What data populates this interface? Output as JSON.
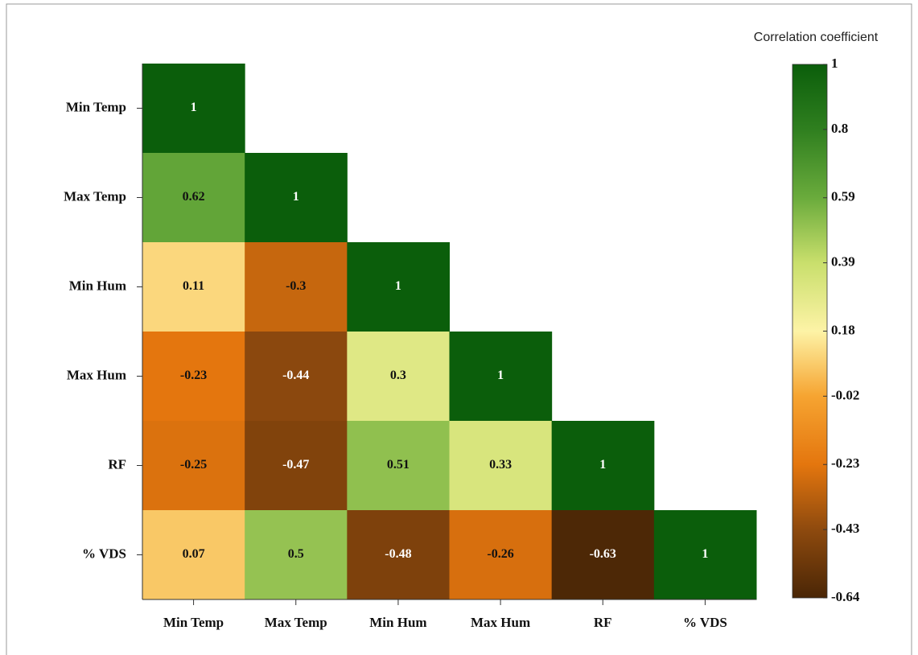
{
  "chart_data": {
    "type": "heatmap",
    "colorbar_title": "Correlation coefficient",
    "categories": [
      "Min Temp",
      "Max Temp",
      "Min Hum",
      "Max Hum",
      "RF",
      "% VDS"
    ],
    "values": [
      [
        1,
        null,
        null,
        null,
        null,
        null
      ],
      [
        0.62,
        1,
        null,
        null,
        null,
        null
      ],
      [
        0.11,
        -0.3,
        1,
        null,
        null,
        null
      ],
      [
        -0.23,
        -0.44,
        0.3,
        1,
        null,
        null
      ],
      [
        -0.25,
        -0.47,
        0.51,
        0.33,
        1,
        null
      ],
      [
        0.07,
        0.5,
        -0.48,
        -0.26,
        -0.63,
        1
      ]
    ],
    "clim": [
      -0.64,
      1
    ],
    "cticks": [
      1,
      0.8,
      0.59,
      0.39,
      0.18,
      -0.02,
      -0.23,
      -0.43,
      -0.64
    ],
    "ctick_colors": [
      "#0b5e0b",
      "#2f7f1f",
      "#6aab3c",
      "#c9df6c",
      "#fdf3a6",
      "#f6a431",
      "#e4760e",
      "#8e4a0e",
      "#4a2606"
    ]
  }
}
